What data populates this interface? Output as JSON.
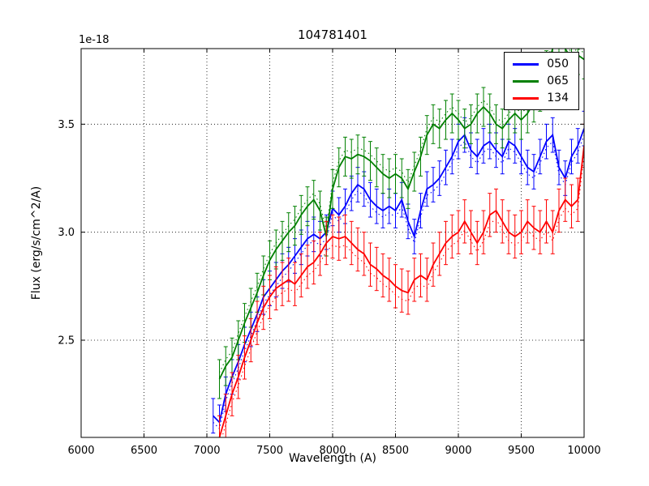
{
  "chart_data": {
    "type": "line",
    "title": "104781401",
    "xlabel": "Wavelength (A)",
    "ylabel": "Flux (erg/s/cm^2/A)",
    "y_offset_text": "1e-18",
    "xlim": [
      6000,
      10000
    ],
    "ylim": [
      2.05,
      3.85
    ],
    "xticks": [
      6000,
      6500,
      7000,
      7500,
      8000,
      8500,
      9000,
      9500,
      10000
    ],
    "yticks": [
      2.5,
      3.0,
      3.5
    ],
    "grid": true,
    "grid_style": "dotted",
    "legend_position": "upper right",
    "series": [
      {
        "name": "050",
        "color": "#0000ff",
        "yerr": 0.08,
        "dotted_delta": -0.03,
        "x": [
          7050,
          7100,
          7150,
          7200,
          7250,
          7300,
          7350,
          7400,
          7450,
          7500,
          7550,
          7600,
          7650,
          7700,
          7750,
          7800,
          7850,
          7900,
          7950,
          8000,
          8050,
          8100,
          8150,
          8200,
          8250,
          8300,
          8350,
          8400,
          8450,
          8500,
          8550,
          8600,
          8650,
          8700,
          8750,
          8800,
          8850,
          8900,
          8950,
          9000,
          9050,
          9100,
          9150,
          9200,
          9250,
          9300,
          9350,
          9400,
          9450,
          9500,
          9550,
          9600,
          9650,
          9700,
          9750,
          9800,
          9850,
          9900,
          9950,
          10000
        ],
        "y": [
          2.15,
          2.12,
          2.25,
          2.33,
          2.4,
          2.48,
          2.55,
          2.62,
          2.7,
          2.74,
          2.78,
          2.82,
          2.85,
          2.89,
          2.93,
          2.97,
          2.99,
          2.97,
          3.0,
          3.11,
          3.08,
          3.12,
          3.18,
          3.22,
          3.2,
          3.15,
          3.12,
          3.1,
          3.12,
          3.1,
          3.15,
          3.05,
          2.98,
          3.1,
          3.2,
          3.22,
          3.25,
          3.3,
          3.35,
          3.42,
          3.45,
          3.38,
          3.35,
          3.4,
          3.42,
          3.38,
          3.35,
          3.42,
          3.4,
          3.35,
          3.3,
          3.28,
          3.35,
          3.42,
          3.45,
          3.3,
          3.25,
          3.35,
          3.4,
          3.48
        ]
      },
      {
        "name": "065",
        "color": "#008000",
        "yerr": 0.09,
        "dotted_delta": 0.03,
        "x": [
          7100,
          7150,
          7200,
          7250,
          7300,
          7350,
          7400,
          7450,
          7500,
          7550,
          7600,
          7650,
          7700,
          7750,
          7800,
          7850,
          7900,
          7950,
          8000,
          8050,
          8100,
          8150,
          8200,
          8250,
          8300,
          8350,
          8400,
          8450,
          8500,
          8550,
          8600,
          8650,
          8700,
          8750,
          8800,
          8850,
          8900,
          8950,
          9000,
          9050,
          9100,
          9150,
          9200,
          9250,
          9300,
          9350,
          9400,
          9450,
          9500,
          9550,
          9600,
          9650,
          9700,
          9750,
          9800,
          9850,
          9900,
          9950,
          10000
        ],
        "y": [
          2.32,
          2.38,
          2.42,
          2.5,
          2.58,
          2.65,
          2.72,
          2.8,
          2.87,
          2.92,
          2.96,
          3.0,
          3.03,
          3.08,
          3.12,
          3.15,
          3.1,
          2.98,
          3.2,
          3.3,
          3.35,
          3.34,
          3.36,
          3.35,
          3.33,
          3.3,
          3.27,
          3.25,
          3.27,
          3.25,
          3.2,
          3.28,
          3.35,
          3.45,
          3.5,
          3.48,
          3.52,
          3.55,
          3.52,
          3.48,
          3.5,
          3.55,
          3.58,
          3.55,
          3.5,
          3.48,
          3.52,
          3.55,
          3.52,
          3.55,
          3.6,
          3.65,
          3.75,
          3.85,
          3.9,
          3.85,
          3.8,
          3.82,
          3.8
        ]
      },
      {
        "name": "134",
        "color": "#ff0000",
        "yerr": 0.1,
        "dotted_delta": -0.04,
        "x": [
          7100,
          7150,
          7200,
          7250,
          7300,
          7350,
          7400,
          7450,
          7500,
          7550,
          7600,
          7650,
          7700,
          7750,
          7800,
          7850,
          7900,
          7950,
          8000,
          8050,
          8100,
          8150,
          8200,
          8250,
          8300,
          8350,
          8400,
          8450,
          8500,
          8550,
          8600,
          8650,
          8700,
          8750,
          8800,
          8850,
          8900,
          8950,
          9000,
          9050,
          9100,
          9150,
          9200,
          9250,
          9300,
          9350,
          9400,
          9450,
          9500,
          9550,
          9600,
          9650,
          9700,
          9750,
          9800,
          9850,
          9900,
          9950,
          10000
        ],
        "y": [
          2.05,
          2.15,
          2.25,
          2.33,
          2.42,
          2.5,
          2.58,
          2.65,
          2.7,
          2.74,
          2.76,
          2.78,
          2.76,
          2.8,
          2.84,
          2.86,
          2.9,
          2.95,
          2.98,
          2.97,
          2.98,
          2.95,
          2.92,
          2.9,
          2.85,
          2.83,
          2.8,
          2.78,
          2.75,
          2.73,
          2.72,
          2.78,
          2.8,
          2.78,
          2.85,
          2.9,
          2.95,
          2.98,
          3.0,
          3.05,
          3.0,
          2.95,
          3.0,
          3.08,
          3.1,
          3.05,
          3.0,
          2.98,
          3.0,
          3.05,
          3.02,
          3.0,
          3.05,
          3.0,
          3.1,
          3.15,
          3.12,
          3.15,
          3.4
        ]
      }
    ]
  }
}
